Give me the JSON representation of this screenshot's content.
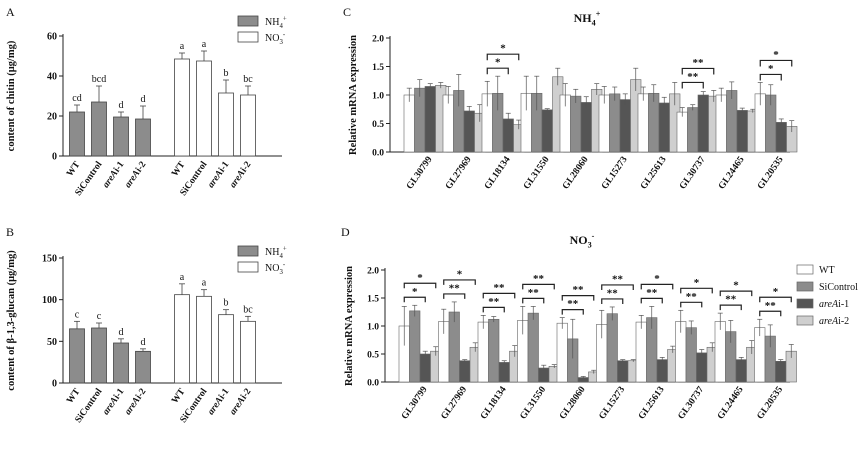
{
  "colors": {
    "nh4_bar": "#8c8c8c",
    "no3_bar": "#ffffff",
    "wt": "#ffffff",
    "sicontrol": "#8c8c8c",
    "are1": "#555555",
    "are2": "#cfcfcf",
    "axis": "#222222"
  },
  "chart_data": [
    {
      "panel": "A",
      "type": "bar",
      "ylabel": "content of chitin (μg/mg)",
      "ylim": [
        0,
        60
      ],
      "yticks": [
        0,
        20,
        40,
        60
      ],
      "groups": [
        {
          "legend_label": "NH₄⁺",
          "legend_base": "NH",
          "legend_sub": "4",
          "legend_sup": "+",
          "categories": [
            "WT",
            "SiControl",
            "areAi-1",
            "areAi-2"
          ],
          "values": [
            22,
            27,
            19.5,
            18.5
          ],
          "errors": [
            3.5,
            8,
            2.5,
            6.5
          ],
          "letters": [
            "cd",
            "bcd",
            "d",
            "d"
          ]
        },
        {
          "legend_label": "NO₃⁻",
          "legend_base": "NO",
          "legend_sub": "3",
          "legend_sup": "-",
          "categories": [
            "WT",
            "SiControl",
            "areAi-1",
            "areAi-2"
          ],
          "values": [
            48.5,
            47.5,
            31.5,
            30.5
          ],
          "errors": [
            3,
            5,
            6.5,
            4.5
          ],
          "letters": [
            "a",
            "a",
            "b",
            "bc"
          ]
        }
      ]
    },
    {
      "panel": "B",
      "type": "bar",
      "ylabel": "content of β-1,3-glucan (μg/mg)",
      "ylim": [
        0,
        150
      ],
      "yticks": [
        0,
        50,
        100,
        150
      ],
      "groups": [
        {
          "legend_label": "NH₄⁺",
          "legend_base": "NH",
          "legend_sub": "4",
          "legend_sup": "+",
          "categories": [
            "WT",
            "SiControl",
            "areAi-1",
            "areAi-2"
          ],
          "values": [
            65,
            66,
            48,
            38
          ],
          "errors": [
            9,
            6,
            5,
            3
          ],
          "letters": [
            "c",
            "c",
            "d",
            "d"
          ]
        },
        {
          "legend_label": "NO₃⁻",
          "legend_base": "NO",
          "legend_sub": "3",
          "legend_sup": "-",
          "categories": [
            "WT",
            "SiControl",
            "areAi-1",
            "areAi-2"
          ],
          "values": [
            106,
            104,
            82,
            74
          ],
          "errors": [
            13,
            8,
            6,
            6
          ],
          "letters": [
            "a",
            "a",
            "b",
            "bc"
          ]
        }
      ]
    },
    {
      "panel": "C",
      "type": "bar",
      "title": "NH₄⁺",
      "title_base": "NH",
      "title_sub": "4",
      "title_sup": "+",
      "ylabel": "Relative mRNA expression",
      "ylim": [
        0,
        2.0
      ],
      "yticks": [
        "0.0",
        "0.5",
        "1.0",
        "1.5",
        "2.0"
      ],
      "categories": [
        "GL30799",
        "GL27969",
        "GL18134",
        "GL31550",
        "GL28060",
        "GL15273",
        "GL25613",
        "GL30737",
        "GL24465",
        "GL20535"
      ],
      "series": [
        {
          "name": "WT",
          "values": [
            1.0,
            1.0,
            1.02,
            1.03,
            1.0,
            1.0,
            1.02,
            0.7,
            1.0,
            1.02
          ],
          "errors": [
            0.12,
            0.15,
            0.22,
            0.3,
            0.2,
            0.15,
            0.12,
            0.08,
            0.12,
            0.2
          ]
        },
        {
          "name": "SiControl",
          "values": [
            1.12,
            1.08,
            1.03,
            1.03,
            0.98,
            1.02,
            1.03,
            0.78,
            1.08,
            1.0
          ],
          "errors": [
            0.15,
            0.28,
            0.3,
            0.3,
            0.12,
            0.12,
            0.15,
            0.05,
            0.15,
            0.18
          ]
        },
        {
          "name": "areAi-1",
          "values": [
            1.15,
            0.72,
            0.58,
            0.74,
            0.87,
            0.92,
            0.86,
            1.0,
            0.73,
            0.52
          ],
          "errors": [
            0.05,
            0.08,
            0.1,
            0.02,
            0.1,
            0.1,
            0.1,
            0.06,
            0.04,
            0.06
          ]
        },
        {
          "name": "areAi-2",
          "values": [
            1.17,
            0.68,
            0.48,
            1.32,
            1.1,
            1.27,
            1.02,
            0.98,
            0.72,
            0.45
          ],
          "errors": [
            0.05,
            0.15,
            0.08,
            0.15,
            0.1,
            0.2,
            0.2,
            0.1,
            0.03,
            0.1
          ]
        }
      ],
      "significance": [
        {
          "category": 2,
          "from": 0,
          "to": 2,
          "level": 1,
          "label": "*"
        },
        {
          "category": 2,
          "from": 0,
          "to": 3,
          "level": 2,
          "label": "*"
        },
        {
          "category": 7,
          "from": 0,
          "to": 2,
          "level": 1,
          "label": "**"
        },
        {
          "category": 7,
          "from": 0,
          "to": 3,
          "level": 2,
          "label": "**"
        },
        {
          "category": 9,
          "from": 0,
          "to": 2,
          "level": 1,
          "label": "*"
        },
        {
          "category": 9,
          "from": 0,
          "to": 3,
          "level": 2,
          "label": "*"
        }
      ]
    },
    {
      "panel": "D",
      "type": "bar",
      "title": "NO₃⁻",
      "title_base": "NO",
      "title_sub": "3",
      "title_sup": "-",
      "ylabel": "Relative mRNA expression",
      "ylim": [
        0,
        2.0
      ],
      "yticks": [
        "0.0",
        "0.5",
        "1.0",
        "1.5",
        "2.0"
      ],
      "categories": [
        "GL30799",
        "GL27969",
        "GL18134",
        "GL31550",
        "GL28060",
        "GL15273",
        "GL25613",
        "GL30737",
        "GL24465",
        "GL20535"
      ],
      "series": [
        {
          "name": "WT",
          "values": [
            1.0,
            1.08,
            1.07,
            1.1,
            1.05,
            1.03,
            1.07,
            1.08,
            1.08,
            0.97
          ],
          "errors": [
            0.35,
            0.22,
            0.12,
            0.25,
            0.1,
            0.25,
            0.12,
            0.2,
            0.15,
            0.15
          ]
        },
        {
          "name": "SiControl",
          "values": [
            1.27,
            1.25,
            1.12,
            1.23,
            0.77,
            1.22,
            1.15,
            0.97,
            0.9,
            0.82
          ],
          "errors": [
            0.1,
            0.18,
            0.05,
            0.12,
            0.35,
            0.12,
            0.2,
            0.12,
            0.2,
            0.2
          ]
        },
        {
          "name": "areAi-1",
          "values": [
            0.5,
            0.38,
            0.35,
            0.25,
            0.08,
            0.38,
            0.4,
            0.52,
            0.4,
            0.37
          ],
          "errors": [
            0.05,
            0.02,
            0.03,
            0.05,
            0.02,
            0.02,
            0.04,
            0.06,
            0.04,
            0.03
          ]
        },
        {
          "name": "areAi-2",
          "values": [
            0.55,
            0.62,
            0.55,
            0.28,
            0.18,
            0.38,
            0.58,
            0.62,
            0.62,
            0.55
          ],
          "errors": [
            0.08,
            0.08,
            0.1,
            0.03,
            0.03,
            0.02,
            0.06,
            0.08,
            0.12,
            0.12
          ]
        }
      ],
      "legend": [
        {
          "base": "WT",
          "italic": "",
          "suffix": ""
        },
        {
          "base": "SiControl",
          "italic": "",
          "suffix": ""
        },
        {
          "base": "",
          "italic": "areA",
          "suffix": "i-1"
        },
        {
          "base": "",
          "italic": "areA",
          "suffix": "i-2"
        }
      ],
      "significance": [
        {
          "category": 0,
          "from": 0,
          "to": 2,
          "level": 1,
          "label": "*"
        },
        {
          "category": 0,
          "from": 0,
          "to": 3,
          "level": 2,
          "label": "*"
        },
        {
          "category": 1,
          "from": 0,
          "to": 2,
          "level": 1,
          "label": "**"
        },
        {
          "category": 1,
          "from": 0,
          "to": 3,
          "level": 2,
          "label": "*"
        },
        {
          "category": 2,
          "from": 0,
          "to": 2,
          "level": 1,
          "label": "**"
        },
        {
          "category": 2,
          "from": 0,
          "to": 3,
          "level": 2,
          "label": "**"
        },
        {
          "category": 3,
          "from": 0,
          "to": 2,
          "level": 1,
          "label": "**"
        },
        {
          "category": 3,
          "from": 0,
          "to": 3,
          "level": 2,
          "label": "**"
        },
        {
          "category": 4,
          "from": 0,
          "to": 2,
          "level": 1,
          "label": "**"
        },
        {
          "category": 4,
          "from": 0,
          "to": 3,
          "level": 2,
          "label": "**"
        },
        {
          "category": 5,
          "from": 0,
          "to": 2,
          "level": 1,
          "label": "**"
        },
        {
          "category": 5,
          "from": 0,
          "to": 3,
          "level": 2,
          "label": "**"
        },
        {
          "category": 6,
          "from": 0,
          "to": 2,
          "level": 1,
          "label": "**"
        },
        {
          "category": 6,
          "from": 0,
          "to": 3,
          "level": 2,
          "label": "*"
        },
        {
          "category": 7,
          "from": 0,
          "to": 2,
          "level": 1,
          "label": "**"
        },
        {
          "category": 7,
          "from": 0,
          "to": 3,
          "level": 2,
          "label": "*"
        },
        {
          "category": 8,
          "from": 0,
          "to": 2,
          "level": 1,
          "label": "**"
        },
        {
          "category": 8,
          "from": 0,
          "to": 3,
          "level": 2,
          "label": "*"
        },
        {
          "category": 9,
          "from": 0,
          "to": 2,
          "level": 1,
          "label": "**"
        },
        {
          "category": 9,
          "from": 0,
          "to": 3,
          "level": 2,
          "label": "*"
        }
      ]
    }
  ]
}
